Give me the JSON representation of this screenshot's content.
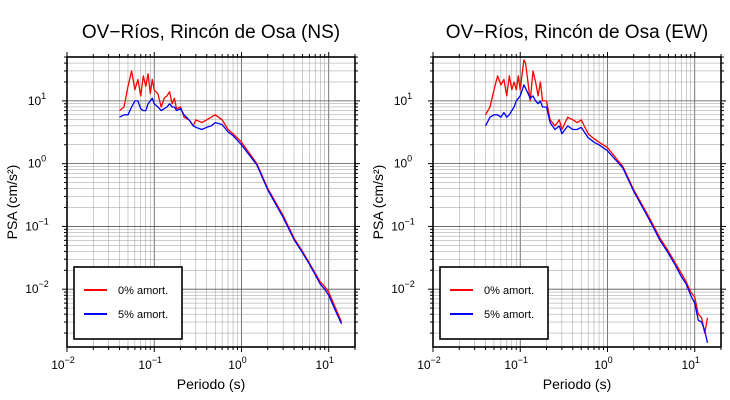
{
  "chart_data": [
    {
      "type": "line",
      "title": "OV−Ríos, Rincón de Osa (NS)",
      "xlabel": "Periodo (s)",
      "ylabel": "PSA (cm/s²)",
      "xscale": "log",
      "yscale": "log",
      "xlim": [
        0.01,
        20
      ],
      "ylim": [
        0.0012,
        50
      ],
      "xticks": [
        {
          "value": 0.01,
          "base": "10",
          "exp": "−2"
        },
        {
          "value": 0.1,
          "base": "10",
          "exp": "−1"
        },
        {
          "value": 1,
          "base": "10",
          "exp": "0"
        },
        {
          "value": 10,
          "base": "10",
          "exp": "1"
        }
      ],
      "yticks": [
        {
          "value": 0.01,
          "base": "10",
          "exp": "−2"
        },
        {
          "value": 0.1,
          "base": "10",
          "exp": "−1"
        },
        {
          "value": 1,
          "base": "10",
          "exp": "0"
        },
        {
          "value": 10,
          "base": "10",
          "exp": "1"
        }
      ],
      "grid": true,
      "legend": "bottom-left",
      "series": [
        {
          "name": "0% amort.",
          "color": "#ff0000",
          "x": [
            0.04,
            0.045,
            0.05,
            0.055,
            0.06,
            0.065,
            0.07,
            0.075,
            0.08,
            0.085,
            0.09,
            0.095,
            0.1,
            0.11,
            0.12,
            0.13,
            0.14,
            0.15,
            0.16,
            0.17,
            0.18,
            0.2,
            0.22,
            0.25,
            0.28,
            0.3,
            0.35,
            0.4,
            0.45,
            0.5,
            0.6,
            0.7,
            0.8,
            1,
            1.5,
            2,
            3,
            4,
            5,
            6,
            7,
            8,
            9,
            10,
            12,
            14
          ],
          "y": [
            7,
            8,
            17,
            30,
            15,
            22,
            12,
            25,
            17,
            27,
            13,
            22,
            15,
            13,
            8,
            11,
            12,
            14,
            9,
            11,
            7.5,
            8,
            5.5,
            5,
            4,
            5,
            4.5,
            5,
            5.5,
            6,
            5,
            3.5,
            3,
            2.2,
            1,
            0.4,
            0.15,
            0.065,
            0.04,
            0.026,
            0.018,
            0.013,
            0.011,
            0.009,
            0.005,
            0.003
          ]
        },
        {
          "name": "5% amort.",
          "color": "#0000ff",
          "x": [
            0.04,
            0.045,
            0.05,
            0.055,
            0.06,
            0.065,
            0.07,
            0.075,
            0.08,
            0.085,
            0.09,
            0.095,
            0.1,
            0.11,
            0.12,
            0.13,
            0.14,
            0.15,
            0.16,
            0.17,
            0.18,
            0.2,
            0.22,
            0.25,
            0.28,
            0.3,
            0.35,
            0.4,
            0.45,
            0.5,
            0.6,
            0.7,
            0.8,
            1,
            1.5,
            2,
            3,
            4,
            5,
            6,
            7,
            8,
            9,
            10,
            12,
            14
          ],
          "y": [
            5.5,
            6,
            6,
            8,
            10,
            10,
            7.5,
            7,
            7,
            9,
            10,
            11,
            9,
            8,
            7,
            7.5,
            8,
            9,
            8,
            8,
            7,
            7.5,
            6,
            5,
            4,
            3.8,
            3.5,
            3.8,
            4,
            4.5,
            4.2,
            3.2,
            2.8,
            2,
            0.95,
            0.38,
            0.14,
            0.062,
            0.038,
            0.025,
            0.017,
            0.012,
            0.01,
            0.008,
            0.0045,
            0.0028
          ]
        }
      ]
    },
    {
      "type": "line",
      "title": "OV−Ríos, Rincón de Osa (EW)",
      "xlabel": "Periodo (s)",
      "ylabel": "PSA (cm/s²)",
      "xscale": "log",
      "yscale": "log",
      "xlim": [
        0.01,
        20
      ],
      "ylim": [
        0.0012,
        50
      ],
      "xticks": [
        {
          "value": 0.01,
          "base": "10",
          "exp": "−2"
        },
        {
          "value": 0.1,
          "base": "10",
          "exp": "−1"
        },
        {
          "value": 1,
          "base": "10",
          "exp": "0"
        },
        {
          "value": 10,
          "base": "10",
          "exp": "1"
        }
      ],
      "yticks": [
        {
          "value": 0.01,
          "base": "10",
          "exp": "−2"
        },
        {
          "value": 0.1,
          "base": "10",
          "exp": "−1"
        },
        {
          "value": 1,
          "base": "10",
          "exp": "0"
        },
        {
          "value": 10,
          "base": "10",
          "exp": "1"
        }
      ],
      "grid": true,
      "legend": "bottom-left",
      "series": [
        {
          "name": "0% amort.",
          "color": "#ff0000",
          "x": [
            0.04,
            0.045,
            0.05,
            0.055,
            0.06,
            0.065,
            0.07,
            0.075,
            0.08,
            0.085,
            0.09,
            0.095,
            0.1,
            0.11,
            0.115,
            0.12,
            0.13,
            0.14,
            0.15,
            0.16,
            0.17,
            0.18,
            0.2,
            0.22,
            0.25,
            0.28,
            0.3,
            0.35,
            0.4,
            0.45,
            0.5,
            0.6,
            0.7,
            0.8,
            1,
            1.5,
            2,
            3,
            4,
            5,
            6,
            7,
            8,
            9,
            10,
            11,
            12,
            13,
            14
          ],
          "y": [
            6,
            8,
            15,
            25,
            18,
            22,
            12,
            25,
            15,
            20,
            15,
            25,
            15,
            45,
            40,
            25,
            10,
            30,
            20,
            12,
            20,
            10,
            10,
            5,
            4,
            5,
            3.5,
            5.5,
            5,
            4.5,
            5,
            3,
            2.5,
            2.2,
            1.8,
            0.9,
            0.38,
            0.14,
            0.065,
            0.04,
            0.026,
            0.018,
            0.013,
            0.009,
            0.0075,
            0.004,
            0.0035,
            0.002,
            0.0035
          ]
        },
        {
          "name": "5% amort.",
          "color": "#0000ff",
          "x": [
            0.04,
            0.045,
            0.05,
            0.055,
            0.06,
            0.065,
            0.07,
            0.075,
            0.08,
            0.085,
            0.09,
            0.095,
            0.1,
            0.11,
            0.115,
            0.12,
            0.13,
            0.14,
            0.15,
            0.16,
            0.17,
            0.18,
            0.2,
            0.22,
            0.25,
            0.28,
            0.3,
            0.35,
            0.4,
            0.45,
            0.5,
            0.6,
            0.7,
            0.8,
            1,
            1.5,
            2,
            3,
            4,
            5,
            6,
            7,
            8,
            9,
            10,
            11,
            12,
            13,
            14
          ],
          "y": [
            4,
            5.5,
            6,
            6,
            5.5,
            6.5,
            5.5,
            6,
            7,
            8,
            10,
            11,
            12,
            18,
            16,
            14,
            11,
            12,
            10,
            9,
            10,
            8,
            8,
            4.5,
            3.5,
            4,
            3,
            4,
            3.5,
            3.5,
            3.8,
            2.6,
            2.2,
            2,
            1.6,
            0.85,
            0.36,
            0.13,
            0.06,
            0.037,
            0.024,
            0.016,
            0.012,
            0.008,
            0.006,
            0.0032,
            0.003,
            0.0022,
            0.0014
          ]
        }
      ]
    }
  ]
}
